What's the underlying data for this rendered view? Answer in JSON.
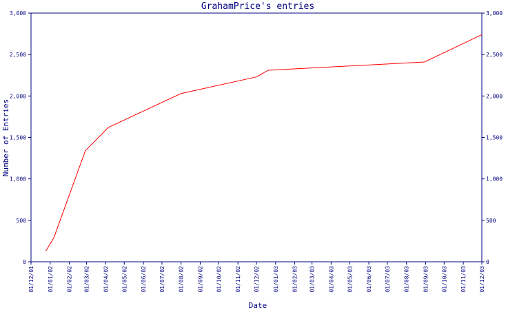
{
  "chart_data": {
    "type": "line",
    "title": "GrahamPrice's entries",
    "xlabel": "Date",
    "ylabel": "Number of Entries",
    "ylim": [
      0,
      3000
    ],
    "y_ticks": [
      0,
      500,
      1000,
      1500,
      2000,
      2500,
      3000
    ],
    "y_tick_labels": [
      "0",
      "500",
      "1,000",
      "1,500",
      "2,000",
      "2,500",
      "3,000"
    ],
    "x_range": [
      "2001-12-01",
      "2003-12-01"
    ],
    "x_ticks": [
      "2001-12-01",
      "2002-01-01",
      "2002-02-01",
      "2002-03-01",
      "2002-04-01",
      "2002-05-01",
      "2002-06-01",
      "2002-07-01",
      "2002-08-01",
      "2002-09-01",
      "2002-10-01",
      "2002-11-01",
      "2002-12-01",
      "2003-01-01",
      "2003-02-01",
      "2003-03-01",
      "2003-04-01",
      "2003-05-01",
      "2003-06-01",
      "2003-07-01",
      "2003-08-01",
      "2003-09-01",
      "2003-10-01",
      "2003-11-01",
      "2003-12-01"
    ],
    "x_tick_labels": [
      "01/12/01",
      "01/01/02",
      "01/02/02",
      "01/03/02",
      "01/04/02",
      "01/05/02",
      "01/06/02",
      "01/07/02",
      "01/08/02",
      "01/09/02",
      "01/10/02",
      "01/11/02",
      "01/12/02",
      "01/01/03",
      "01/02/03",
      "01/03/03",
      "01/04/03",
      "01/05/03",
      "01/06/03",
      "01/07/03",
      "01/08/03",
      "01/09/03",
      "01/10/03",
      "01/11/03",
      "01/12/03"
    ],
    "grid": false,
    "right_axis": true,
    "colors": {
      "line": "#ff0000",
      "axes": "#000080",
      "text": "#000080"
    },
    "series": [
      {
        "x": [
          "2001-12-25",
          "2002-01-07",
          "2002-02-27",
          "2002-04-05",
          "2002-08-01",
          "2002-12-01",
          "2002-12-20",
          "2003-08-30",
          "2003-12-01"
        ],
        "y": [
          130,
          290,
          1340,
          1620,
          2030,
          2230,
          2310,
          2410,
          2740
        ]
      }
    ]
  }
}
